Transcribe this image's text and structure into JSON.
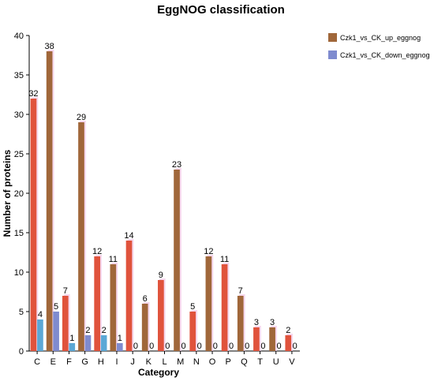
{
  "chart_data": {
    "type": "bar",
    "title": "EggNOG classification",
    "xlabel": "Category",
    "ylabel": "Number of proteins",
    "ylim": [
      0,
      40
    ],
    "yticks": [
      0,
      5,
      10,
      15,
      20,
      25,
      30,
      35,
      40
    ],
    "categories": [
      "C",
      "E",
      "F",
      "G",
      "H",
      "I",
      "J",
      "K",
      "L",
      "M",
      "N",
      "O",
      "P",
      "Q",
      "T",
      "U",
      "V"
    ],
    "series": [
      {
        "name": "Czk1_vs_CK_up_eggnog",
        "color": "#a0673a",
        "alt_color": "#e0533c",
        "values": [
          32,
          38,
          7,
          29,
          12,
          11,
          14,
          6,
          9,
          23,
          5,
          12,
          11,
          7,
          3,
          3,
          2
        ]
      },
      {
        "name": "Czk1_vs_CK_down_eggnog",
        "color": "#7f8bcf",
        "alt_color": "#5ba8d6",
        "values": [
          4,
          5,
          1,
          2,
          2,
          1,
          0,
          0,
          0,
          0,
          0,
          0,
          0,
          0,
          0,
          0,
          0
        ]
      }
    ],
    "legend_position": "top-right",
    "grid": false
  }
}
